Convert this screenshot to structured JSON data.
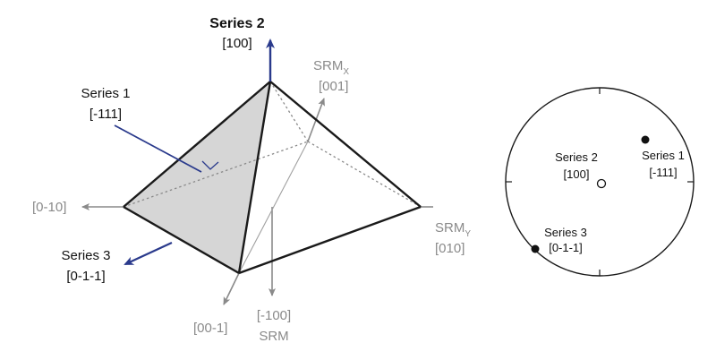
{
  "colors": {
    "axis_grey": "#8a8a8a",
    "edge_black": "#1a1a1a",
    "face_grey": "#d6d6d6",
    "arrow_blue": "#2a3a8c"
  },
  "pyramid": {
    "series2_title": "Series 2",
    "series2_index": "[100]",
    "series1_title": "Series 1",
    "series1_index": "[-111]",
    "series3_title": "Series 3",
    "series3_index": "[0-1-1]",
    "axis_0m10": "[0-10]",
    "axis_srmx": "SRM",
    "axis_srmx_sub": "X",
    "axis_001": "[001]",
    "axis_srmy": "SRM",
    "axis_srmy_sub": "Y",
    "axis_010": "[010]",
    "axis_00m1": "[00-1]",
    "axis_m100": "[-100]",
    "axis_srm": "SRM"
  },
  "stereonet": {
    "series2_title": "Series 2",
    "series2_index": "[100]",
    "series1_title": "Series 1",
    "series1_index": "[-111]",
    "series3_title": "Series 3",
    "series3_index": "[0-1-1]"
  }
}
